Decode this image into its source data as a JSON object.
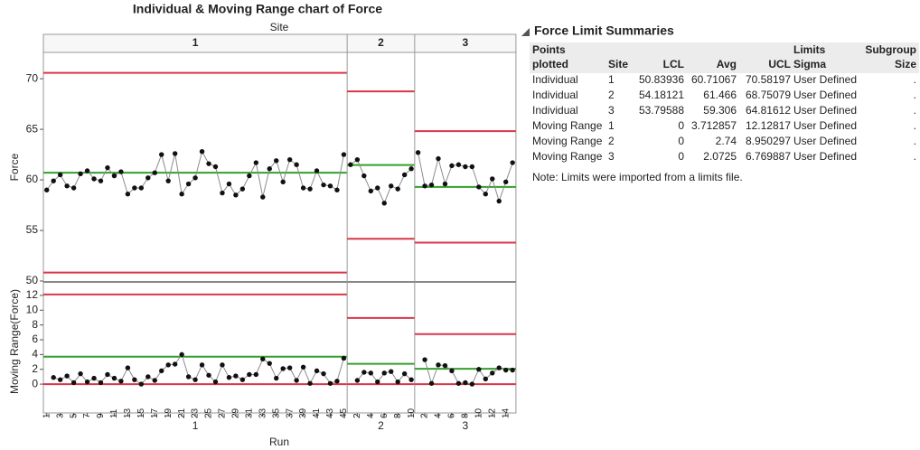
{
  "chart_data": {
    "type": "control",
    "title": "Individual & Moving Range chart of Force",
    "group_label": "Site",
    "x_label": "Run",
    "y_label": "Force",
    "mr_y_label": "Moving Range(Force)",
    "ylim": [
      50,
      72.6
    ],
    "yticks": [
      50,
      55,
      60,
      65,
      70
    ],
    "mr_ylim": [
      -3.9,
      13.7
    ],
    "mr_yticks": [
      0,
      2,
      4,
      6,
      8,
      10,
      12
    ],
    "limit_color": "#d9364a",
    "center_color": "#33a02c",
    "point_color": "#111111",
    "line_color": "#8c8c8c",
    "sites": [
      {
        "name": "1",
        "runs": [
          1,
          null,
          3,
          null,
          5,
          null,
          7,
          null,
          9,
          null,
          11,
          null,
          13,
          null,
          15,
          null,
          17,
          null,
          19,
          null,
          21,
          null,
          23,
          null,
          25,
          null,
          27,
          null,
          29,
          null,
          31,
          null,
          33,
          null,
          35,
          null,
          37,
          null,
          39,
          null,
          41,
          null,
          43,
          null,
          45
        ],
        "individual": [
          59.0,
          59.9,
          60.5,
          59.4,
          59.2,
          60.6,
          60.9,
          60.1,
          59.9,
          61.2,
          60.4,
          60.8,
          58.6,
          59.2,
          59.2,
          60.2,
          60.7,
          62.5,
          59.9,
          62.6,
          58.6,
          59.6,
          60.2,
          62.8,
          61.6,
          61.3,
          58.7,
          59.6,
          58.5,
          59.1,
          60.4,
          61.7,
          58.3,
          61.1,
          61.9,
          59.8,
          62.0,
          61.5,
          59.2,
          59.1,
          60.9,
          59.5,
          59.4,
          59.0,
          62.5
        ],
        "moving_range": [
          null,
          0.9,
          0.6,
          1.1,
          0.2,
          1.4,
          0.3,
          0.8,
          0.2,
          1.3,
          0.8,
          0.4,
          2.2,
          0.6,
          0.0,
          1.0,
          0.5,
          1.8,
          2.6,
          2.7,
          4.0,
          1.0,
          0.6,
          2.6,
          1.2,
          0.3,
          2.6,
          0.9,
          1.1,
          0.6,
          1.3,
          1.3,
          3.4,
          2.8,
          0.8,
          2.1,
          2.2,
          0.5,
          2.3,
          0.1,
          1.8,
          1.4,
          0.1,
          0.4,
          3.5
        ]
      },
      {
        "name": "2",
        "runs": [
          null,
          2,
          null,
          4,
          null,
          6,
          null,
          8,
          null,
          10
        ],
        "individual": [
          61.5,
          62.0,
          60.4,
          58.9,
          59.2,
          57.7,
          59.4,
          59.1,
          60.5,
          61.1
        ],
        "moving_range": [
          null,
          0.5,
          1.6,
          1.5,
          0.3,
          1.5,
          1.7,
          0.3,
          1.4,
          0.6
        ]
      },
      {
        "name": "3",
        "runs": [
          null,
          2,
          null,
          4,
          null,
          6,
          null,
          8,
          null,
          10,
          null,
          12,
          null,
          14,
          null
        ],
        "individual": [
          62.7,
          59.4,
          59.5,
          62.1,
          59.6,
          61.4,
          61.5,
          61.3,
          61.3,
          59.3,
          58.6,
          60.1,
          57.9,
          59.8,
          61.7
        ],
        "moving_range": [
          null,
          3.3,
          0.1,
          2.6,
          2.5,
          1.8,
          0.1,
          0.2,
          0.0,
          2.0,
          0.7,
          1.5,
          2.2,
          1.9,
          1.9
        ]
      }
    ]
  },
  "summary": {
    "title": "Force Limit Summaries",
    "headers": [
      [
        "Points",
        "plotted"
      ],
      [
        "Site"
      ],
      [
        "LCL"
      ],
      [
        "Avg"
      ],
      [
        "UCL"
      ],
      [
        "Limits",
        "Sigma"
      ],
      [
        "Subgroup",
        "Size"
      ]
    ],
    "rows": [
      [
        "Individual",
        "1",
        50.83936,
        60.71067,
        70.58197,
        "User Defined",
        "."
      ],
      [
        "Individual",
        "2",
        54.18121,
        61.466,
        68.75079,
        "User Defined",
        "."
      ],
      [
        "Individual",
        "3",
        53.79588,
        59.306,
        64.81612,
        "User Defined",
        "."
      ],
      [
        "Moving Range",
        "1",
        0,
        3.712857,
        12.12817,
        "User Defined",
        "."
      ],
      [
        "Moving Range",
        "2",
        0,
        2.74,
        8.950297,
        "User Defined",
        "."
      ],
      [
        "Moving Range",
        "3",
        0,
        2.0725,
        6.769887,
        "User Defined",
        "."
      ]
    ],
    "note": "Note: Limits were imported from a limits file."
  }
}
